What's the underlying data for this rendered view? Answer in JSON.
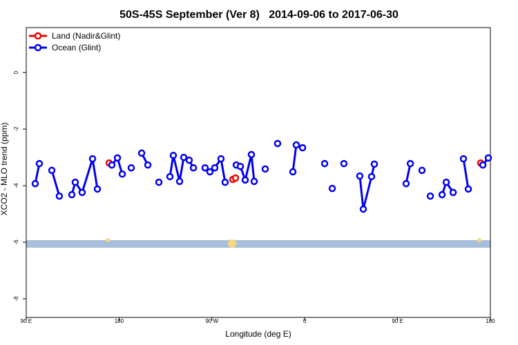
{
  "chart_data": {
    "type": "line",
    "title": "50S-45S September (Ver 8)   2014-09-06 to 2017-06-30",
    "x_label": "Longitude (deg E)",
    "y_label": "XCO2 - MLO trend (ppm)",
    "xlim": [
      90,
      540
    ],
    "ylim": [
      -8.66,
      1.59
    ],
    "xticks": [
      {
        "value": 90,
        "label": "90 E"
      },
      180,
      {
        "value": 270,
        "label": "90 W"
      },
      {
        "value": 360,
        "label": "0"
      },
      {
        "value": 450,
        "label": "90 E"
      },
      {
        "value": 540,
        "label": "180"
      }
    ],
    "yticks": [
      0,
      -2,
      -4,
      -6,
      -8
    ],
    "legend": "top-left",
    "series": [
      {
        "name": "Land (Nadir&Glint)",
        "color": "#ee0000",
        "x": [
          170.4,
          null,
          290.2,
          292.9,
          null,
          530.6
        ],
        "values": [
          -3.2,
          null,
          -3.78,
          -3.73,
          null,
          -3.2
        ]
      },
      {
        "name": "Ocean (Glint)",
        "color": "#0000ee",
        "x": [
          98.7,
          102.7,
          null,
          114.8,
          122.1,
          null,
          134.2,
          137.5,
          144.2,
          154.3,
          159,
          null,
          173,
          178.4,
          183.1,
          null,
          191.8,
          null,
          201.9,
          207.9,
          null,
          218.6,
          null,
          229.3,
          232.6,
          238.7,
          242.7,
          248,
          252.1,
          null,
          263.4,
          268.1,
          272.8,
          278.8,
          282.8,
          null,
          293.6,
          297.6,
          302.3,
          308.3,
          311,
          null,
          321.7,
          null,
          333.7,
          null,
          348.5,
          351.8,
          357.9,
          null,
          379.3,
          null,
          386.7,
          null,
          398,
          null,
          413.4,
          416.8,
          424.8,
          427.5,
          null,
          458.3,
          462.4,
          null,
          473.7,
          null,
          481.8,
          null,
          493.2,
          497.2,
          503.9,
          null,
          513.9,
          518.6,
          null,
          532.7,
          538
        ],
        "values": [
          -3.93,
          -3.22,
          null,
          -3.46,
          -4.37,
          null,
          -4.32,
          -3.88,
          -4.24,
          -3.05,
          -4.12,
          null,
          -3.27,
          -3.02,
          -3.59,
          null,
          -3.37,
          null,
          -2.85,
          -3.27,
          null,
          -3.88,
          null,
          -3.68,
          -2.93,
          -3.85,
          -3.0,
          -3.1,
          -3.37,
          null,
          -3.37,
          -3.51,
          -3.37,
          -3.05,
          -3.88,
          null,
          -3.27,
          -3.32,
          -3.8,
          -2.9,
          -3.85,
          null,
          -3.41,
          null,
          -2.51,
          null,
          -3.51,
          -2.56,
          -2.66,
          null,
          -3.22,
          null,
          -4.1,
          null,
          -3.22,
          null,
          -3.66,
          -4.83,
          -3.68,
          -3.24,
          null,
          -3.93,
          -3.22,
          null,
          -3.46,
          null,
          -4.37,
          null,
          -4.32,
          -3.88,
          -4.24,
          null,
          -3.05,
          -4.12,
          null,
          -3.27,
          -3.02
        ]
      }
    ]
  }
}
